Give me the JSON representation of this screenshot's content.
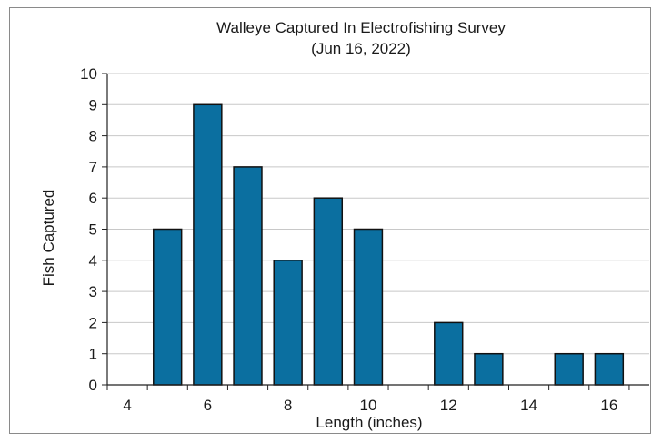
{
  "chart_data": {
    "type": "bar",
    "title": "Walleye Captured In Electrofishing Survey",
    "subtitle": "(Jun 16, 2022)",
    "xlabel": "Length (inches)",
    "ylabel": "Fish Captured",
    "xlim": [
      3.5,
      17
    ],
    "ylim": [
      0,
      10
    ],
    "x_ticks": [
      4,
      6,
      8,
      10,
      12,
      14,
      16
    ],
    "y_ticks": [
      0,
      1,
      2,
      3,
      4,
      5,
      6,
      7,
      8,
      9,
      10
    ],
    "x": [
      5,
      6,
      7,
      8,
      9,
      10,
      12,
      13,
      15,
      16
    ],
    "values": [
      5,
      9,
      7,
      4,
      6,
      5,
      2,
      1,
      1,
      1
    ],
    "bar_color": "#0b6fa0",
    "bar_edge_color": "#111111",
    "grid": "horizontal",
    "grid_color": "#c8c8c8",
    "legend": "none"
  }
}
